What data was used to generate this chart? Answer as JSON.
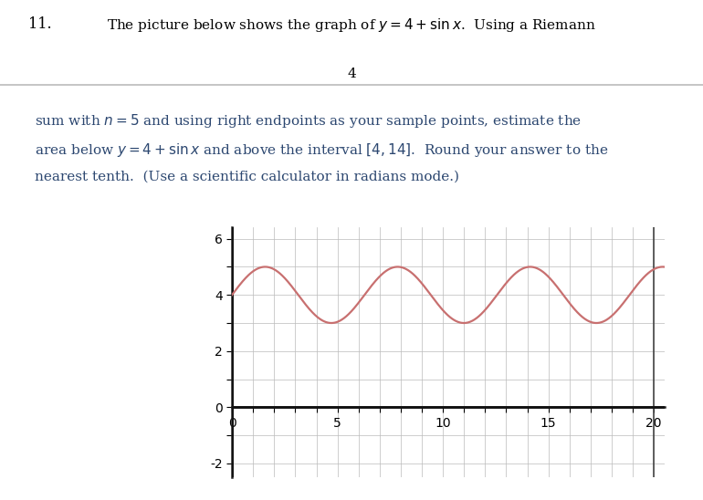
{
  "title_number": "11.",
  "title_text_line1": "The picture below shows the graph of $y = 4 + \\sin x$.  Using a Riemann",
  "page_number": "4",
  "body_text_line1": "sum with $n = 5$ and using right endpoints as your sample points, estimate the",
  "body_text_line2": "area below $y = 4 + \\sin x$ and above the interval $[4, 14]$.  Round your answer to the",
  "body_text_line3": "nearest tenth.  (Use a scientific calculator in radians mode.)",
  "curve_color": "#C87070",
  "curve_linewidth": 1.6,
  "grid_color": "#BBBBBB",
  "axis_linewidth": 1.8,
  "x_ticks_major": [
    0,
    5,
    10,
    15,
    20
  ],
  "x_ticks_all": [
    0,
    1,
    2,
    3,
    4,
    5,
    6,
    7,
    8,
    9,
    10,
    11,
    12,
    13,
    14,
    15,
    16,
    17,
    18,
    19,
    20
  ],
  "y_ticks_all": [
    -2,
    -1,
    0,
    1,
    2,
    3,
    4,
    5,
    6
  ],
  "y_labels_show": [
    -2,
    0,
    2,
    4,
    6
  ],
  "xlim": [
    0,
    20.5
  ],
  "ylim_top": 6.4,
  "ylim_bottom": -2.5,
  "background_color": "#FFFFFF",
  "text_color": "#2C4770",
  "title_color": "#000000",
  "sep_color": "#BBBBBB"
}
